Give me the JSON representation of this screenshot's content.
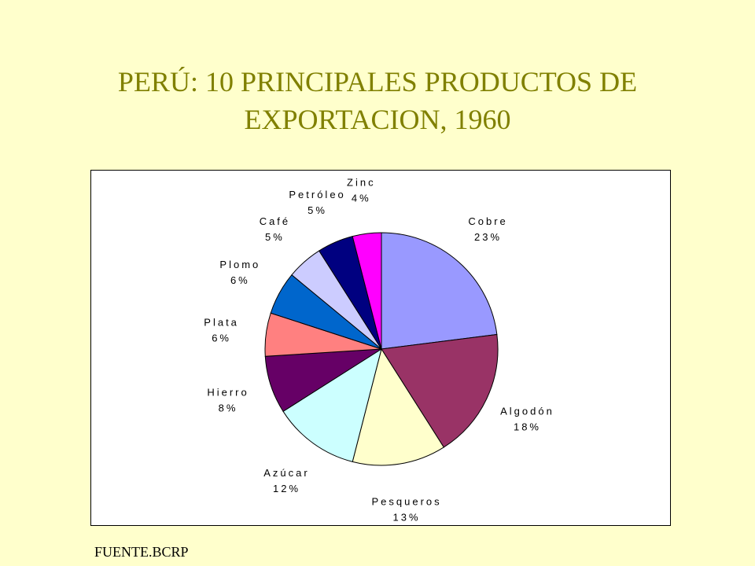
{
  "slide": {
    "title_line1": "PERÚ: 10 PRINCIPALES PRODUCTOS DE",
    "title_line2": "EXPORTACION, 1960",
    "source": "FUENTE.BCRP",
    "background": "#FFFFCC",
    "title_color": "#808000"
  },
  "chart_data": {
    "type": "pie",
    "start_angle_deg": 90,
    "direction": "clockwise",
    "slices": [
      {
        "label": "Cobre",
        "value": 23,
        "value_label": "23%",
        "color": "#9999FF"
      },
      {
        "label": "Algodón",
        "value": 18,
        "value_label": "18%",
        "color": "#993366"
      },
      {
        "label": "Pesqueros",
        "value": 13,
        "value_label": "13%",
        "color": "#FFFFCC"
      },
      {
        "label": "Azúcar",
        "value": 12,
        "value_label": "12%",
        "color": "#CCFFFF"
      },
      {
        "label": "Hierro",
        "value": 8,
        "value_label": "8%",
        "color": "#660066"
      },
      {
        "label": "Plata",
        "value": 6,
        "value_label": "6%",
        "color": "#FF8080"
      },
      {
        "label": "Plomo",
        "value": 6,
        "value_label": "6%",
        "color": "#0066CC"
      },
      {
        "label": "Café",
        "value": 5,
        "value_label": "5%",
        "color": "#CCCCFF"
      },
      {
        "label": "Petróleo",
        "value": 5,
        "value_label": "5%",
        "color": "#000080"
      },
      {
        "label": "Zinc",
        "value": 4,
        "value_label": "4%",
        "color": "#FF00FF"
      }
    ]
  }
}
